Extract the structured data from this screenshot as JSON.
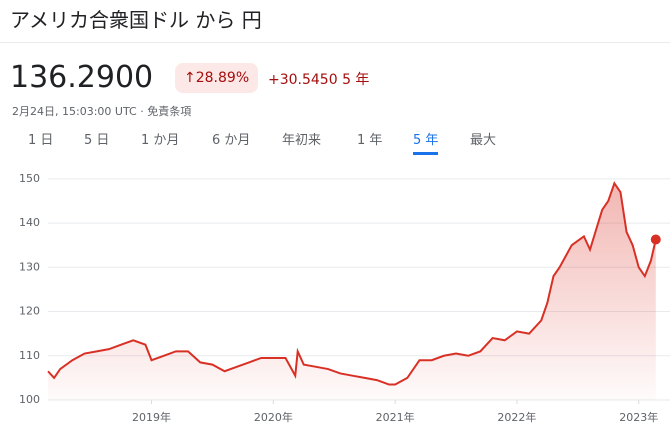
{
  "header": {
    "title": "アメリカ合衆国ドル から 円",
    "price": "136.2900",
    "change_pct": "28.89%",
    "change_abs": "+30.5450",
    "period": "5 年",
    "timestamp": "2月24日, 15:03:00 UTC ·",
    "disclaimer": "免責条項"
  },
  "tabs": [
    "1 日",
    "5 日",
    "1 か月",
    "6 か月",
    "年初来",
    "1 年",
    "5 年",
    "最大"
  ],
  "selected_tab": "5 年",
  "chart_data": {
    "type": "area",
    "x": [
      2018.15,
      2018.2,
      2018.25,
      2018.35,
      2018.45,
      2018.55,
      2018.65,
      2018.75,
      2018.85,
      2018.95,
      2019.0,
      2019.1,
      2019.2,
      2019.3,
      2019.4,
      2019.5,
      2019.6,
      2019.7,
      2019.8,
      2019.9,
      2020.0,
      2020.1,
      2020.18,
      2020.2,
      2020.25,
      2020.35,
      2020.45,
      2020.55,
      2020.65,
      2020.75,
      2020.85,
      2020.95,
      2021.0,
      2021.1,
      2021.2,
      2021.3,
      2021.4,
      2021.5,
      2021.6,
      2021.7,
      2021.8,
      2021.9,
      2022.0,
      2022.1,
      2022.2,
      2022.25,
      2022.3,
      2022.35,
      2022.45,
      2022.55,
      2022.6,
      2022.7,
      2022.75,
      2022.8,
      2022.85,
      2022.9,
      2022.95,
      2023.0,
      2023.05,
      2023.1,
      2023.14
    ],
    "series": [
      {
        "color": "#d93025",
        "values": [
          106.5,
          105,
          107,
          109,
          110.5,
          111,
          111.5,
          112.5,
          113.5,
          112.5,
          109,
          110,
          111,
          111,
          108.5,
          108,
          106.5,
          107.5,
          108.5,
          109.5,
          109.5,
          109.5,
          105.5,
          111,
          108,
          107.5,
          107,
          106,
          105.5,
          105,
          104.5,
          103.5,
          103.5,
          105,
          109,
          109,
          110,
          110.5,
          110,
          111,
          114,
          113.5,
          115.5,
          115,
          118,
          122,
          128,
          130,
          135,
          137,
          134,
          143,
          145,
          149,
          147,
          138,
          135,
          130,
          128,
          131.5,
          136.29
        ]
      }
    ],
    "xlim": [
      2018.15,
      2023.15
    ],
    "xticks": [
      {
        "value": 2019,
        "label": "2019年"
      },
      {
        "value": 2020,
        "label": "2020年"
      },
      {
        "value": 2021,
        "label": "2021年"
      },
      {
        "value": 2022,
        "label": "2022年"
      },
      {
        "value": 2023,
        "label": "2023年"
      }
    ],
    "ylim": [
      100,
      152
    ],
    "yticks": [
      100,
      110,
      120,
      130,
      140,
      150
    ],
    "grid": true
  }
}
